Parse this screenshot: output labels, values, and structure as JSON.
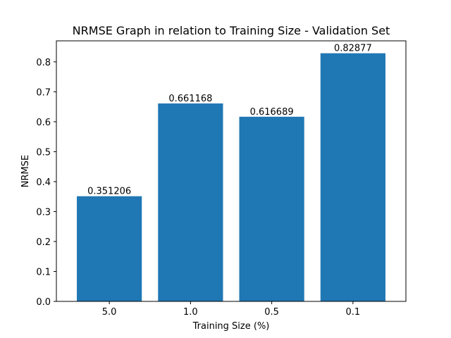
{
  "chart_data": {
    "type": "bar",
    "title": "NRMSE Graph in relation to Training Size - Validation Set",
    "xlabel": "Training Size (%)",
    "ylabel": "NRMSE",
    "categories": [
      "5.0",
      "1.0",
      "0.5",
      "0.1"
    ],
    "values": [
      0.351206,
      0.661168,
      0.616689,
      0.82877
    ],
    "data_labels": [
      "0.351206",
      "0.661168",
      "0.616689",
      "0.82877"
    ],
    "yticks": [
      0.0,
      0.1,
      0.2,
      0.3,
      0.4,
      0.5,
      0.6,
      0.7,
      0.8
    ],
    "ytick_labels": [
      "0.0",
      "0.1",
      "0.2",
      "0.3",
      "0.4",
      "0.5",
      "0.6",
      "0.7",
      "0.8"
    ],
    "ylim": [
      0,
      0.8702
    ],
    "bar_color": "#1f77b4",
    "grid": false,
    "legend": "none"
  }
}
